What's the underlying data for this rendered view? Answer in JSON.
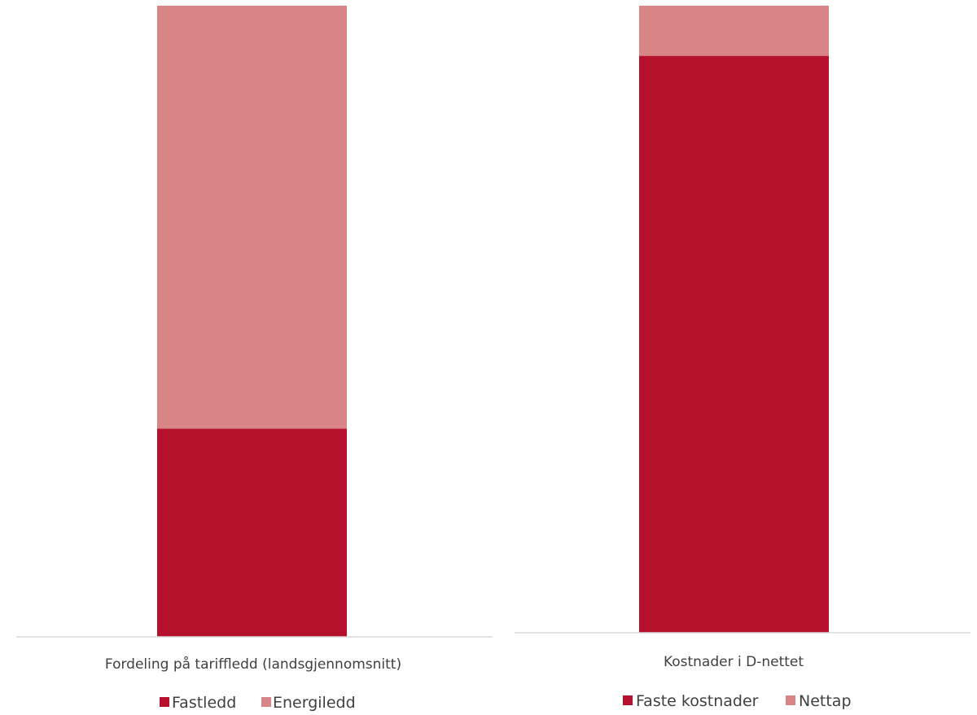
{
  "chart_data": [
    {
      "type": "bar",
      "stacked": true,
      "categories": [
        "Fordeling på tariffledd (landsgjennomsnitt)"
      ],
      "series": [
        {
          "name": "Fastledd",
          "values": [
            33
          ],
          "color": "#B5112D"
        },
        {
          "name": "Energiledd",
          "values": [
            67
          ],
          "color": "#D98588"
        }
      ],
      "ylim": [
        0,
        100
      ],
      "grid": false,
      "legend": "bottom"
    },
    {
      "type": "bar",
      "stacked": true,
      "categories": [
        "Kostnader i D-nettet"
      ],
      "series": [
        {
          "name": "Faste kostnader",
          "values": [
            92
          ],
          "color": "#B5112D"
        },
        {
          "name": "Nettap",
          "values": [
            8
          ],
          "color": "#D98588"
        }
      ],
      "ylim": [
        0,
        100
      ],
      "grid": false,
      "legend": "bottom"
    }
  ]
}
